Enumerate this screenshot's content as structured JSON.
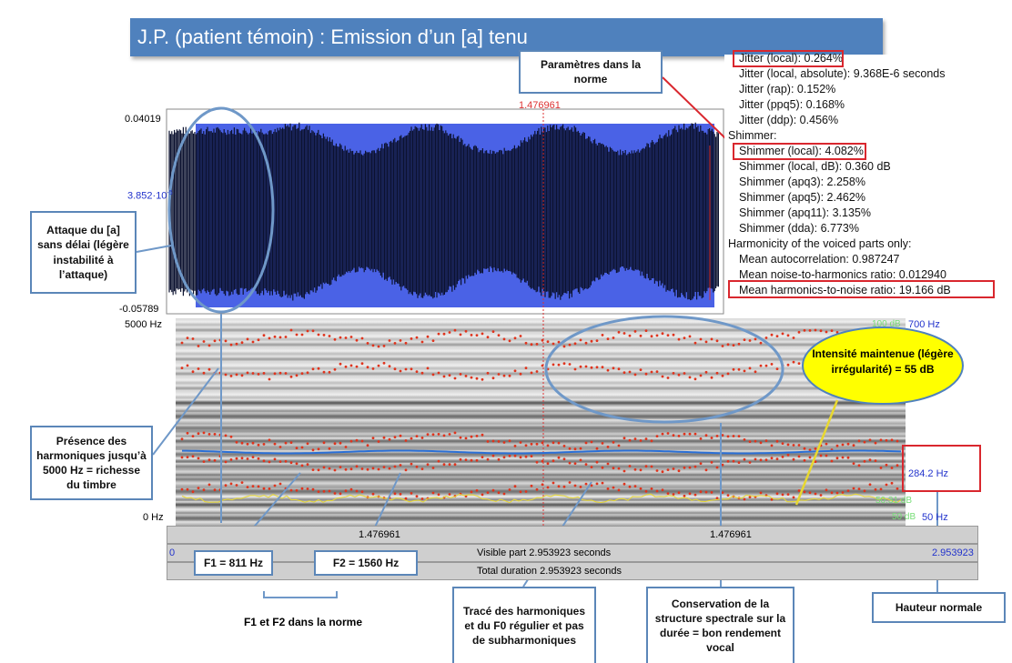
{
  "title": "J.P. (patient témoin) : Emission d’un [a] tenu",
  "praat": {
    "cursor_time": "1.476961",
    "waveform_axis": {
      "top": "0.04019",
      "mid": "3.852·10",
      "mid_exponent": "-5",
      "bottom": "-0.05789"
    },
    "spectrogram_axis": {
      "top": "5000 Hz",
      "bottom": "0 Hz",
      "right_top_db": "100 dB",
      "right_top_hz": "700 Hz",
      "pitch": "284.2 Hz",
      "intensity": "50.31 dB",
      "right_bottom_db": "50 dB",
      "right_bottom_hz": "50 Hz"
    },
    "time_bar": {
      "left_cursor": "1.476961",
      "right_cursor": "1.476961",
      "start": "0",
      "visible": "Visible part 2.953923 seconds",
      "end": "2.953923",
      "total": "Total duration 2.953923 seconds"
    }
  },
  "report": [
    "Jitter (local): 0.264%",
    "Jitter (local, absolute): 9.368E-6 seconds",
    "Jitter (rap): 0.152%",
    "Jitter (ppq5): 0.168%",
    "Jitter (ddp): 0.456%",
    "Shimmer:",
    "Shimmer (local): 4.082%",
    "Shimmer (local, dB): 0.360 dB",
    "Shimmer (apq3): 2.258%",
    "Shimmer (apq5): 2.462%",
    "Shimmer (apq11): 3.135%",
    "Shimmer (dda): 6.773%",
    "Harmonicity of the voiced parts only:",
    "Mean autocorrelation: 0.987247",
    "Mean noise-to-harmonics ratio: 0.012940",
    "Mean harmonics-to-noise ratio: 19.166 dB"
  ],
  "annotations": {
    "parameters": "Paramètres dans la norme",
    "attack": "Attaque du [a] sans délai (légère instabilité à l’attaque)",
    "harmonics": "Présence des harmoniques jusqu’à 5000 Hz = richesse du timbre",
    "f1": "F1 = 811 Hz",
    "f2": "F2 = 1560 Hz",
    "formants": "F1 et F2 dans la norme",
    "trace": "Tracé des harmoniques et du F0 régulier et pas de subharmoniques",
    "structure": "Conservation de la structure spectrale sur la durée = bon rendement vocal",
    "pitch": "Hauteur normale",
    "intensity": "Intensité maintenue (légère irrégularité) = 55 dB"
  }
}
